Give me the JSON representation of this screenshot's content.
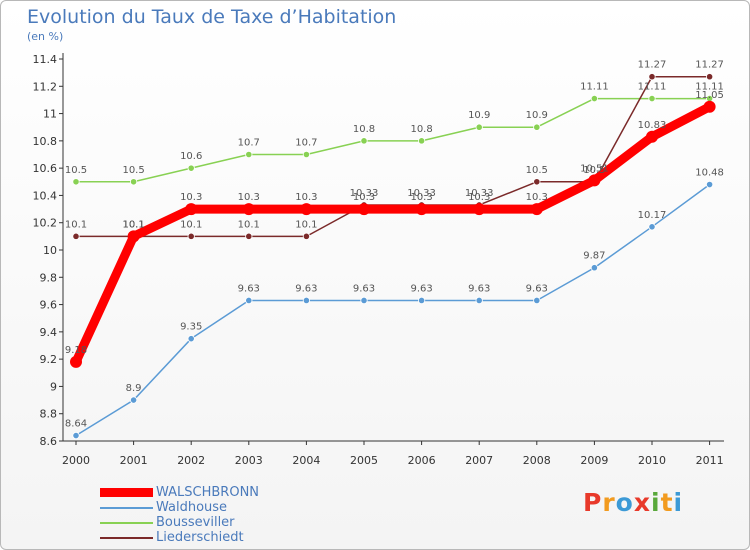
{
  "title": "Evolution du Taux de Taxe d’Habitation",
  "subtitle": "(en %)",
  "logo": "Proxiti",
  "logo_colors": [
    "#e8392a",
    "#f29b1f",
    "#3c9ad6",
    "#e8392a",
    "#59a83b",
    "#f29b1f",
    "#3c9ad6"
  ],
  "chart_data": {
    "type": "line",
    "title": "Evolution du Taux de Taxe d’Habitation",
    "subtitle": "(en %)",
    "xlabel": "",
    "ylabel": "",
    "x": [
      "2000",
      "2001",
      "2002",
      "2003",
      "2004",
      "2005",
      "2006",
      "2007",
      "2008",
      "2009",
      "2010",
      "2011"
    ],
    "ylim": [
      8.6,
      11.4
    ],
    "yticks": [
      "8.6",
      "8.8",
      "9",
      "9.2",
      "9.4",
      "9.6",
      "9.8",
      "10",
      "10.2",
      "10.4",
      "10.6",
      "10.8",
      "11",
      "11.2",
      "11.4"
    ],
    "grid": false,
    "legend_position": "bottom-left",
    "series": [
      {
        "name": "WALSCHBRONN",
        "color": "#ff0000",
        "values": [
          9.18,
          10.1,
          10.3,
          10.3,
          10.3,
          10.3,
          10.3,
          10.3,
          10.3,
          10.51,
          10.83,
          11.05
        ],
        "labels": [
          "9.18",
          "10.1",
          "10.3",
          "10.3",
          "10.3",
          "10.3",
          "10.3",
          "10.3",
          "10.3",
          "10.51",
          "10.83",
          "11.05"
        ]
      },
      {
        "name": "Waldhouse",
        "color": "#5b9bd5",
        "values": [
          8.64,
          8.9,
          9.35,
          9.63,
          9.63,
          9.63,
          9.63,
          9.63,
          9.63,
          9.87,
          10.17,
          10.48
        ],
        "labels": [
          "8.64",
          "8.9",
          "9.35",
          "9.63",
          "9.63",
          "9.63",
          "9.63",
          "9.63",
          "9.63",
          "9.87",
          "10.17",
          "10.48"
        ]
      },
      {
        "name": "Bousseviller",
        "color": "#88d153",
        "values": [
          10.5,
          10.5,
          10.6,
          10.7,
          10.7,
          10.8,
          10.8,
          10.9,
          10.9,
          11.11,
          11.11,
          11.11
        ],
        "labels": [
          "10.5",
          "10.5",
          "10.6",
          "10.7",
          "10.7",
          "10.8",
          "10.8",
          "10.9",
          "10.9",
          "11.11",
          "11.11",
          "11.11"
        ]
      },
      {
        "name": "Liederschiedt",
        "color": "#7b2a2a",
        "values": [
          10.1,
          10.1,
          10.1,
          10.1,
          10.1,
          10.33,
          10.33,
          10.33,
          10.5,
          10.5,
          11.27,
          11.27
        ],
        "labels": [
          "10.1",
          "10.1",
          "10.1",
          "10.1",
          "10.1",
          "10.33",
          "10.33",
          "10.33",
          "10.5",
          "10.5",
          "11.27",
          "11.27"
        ]
      }
    ]
  }
}
